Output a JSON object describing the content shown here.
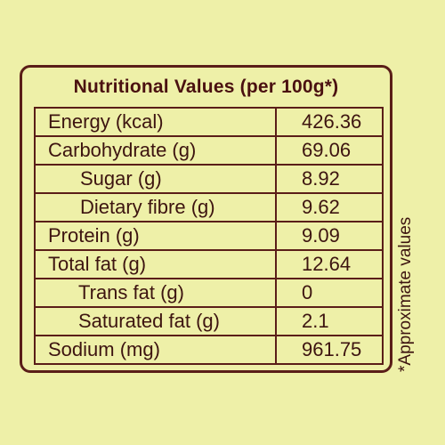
{
  "title": "Nutritional Values (per 100g*)",
  "rows": [
    {
      "label": "Energy (kcal)",
      "value": "426.36"
    },
    {
      "label": "Carbohydrate (g)",
      "value": "69.06"
    },
    {
      "label": "Sugar (g)",
      "value": "8.92"
    },
    {
      "label": "Dietary fibre (g)",
      "value": "9.62"
    },
    {
      "label": "Protein (g)",
      "value": "9.09"
    },
    {
      "label": "Total fat (g)",
      "value": "12.64"
    },
    {
      "label": "Trans fat (g)",
      "value": "0"
    },
    {
      "label": "Saturated fat (g)",
      "value": "2.1"
    },
    {
      "label": "Sodium (mg)",
      "value": "961.75"
    }
  ],
  "note": "*Approximate values"
}
